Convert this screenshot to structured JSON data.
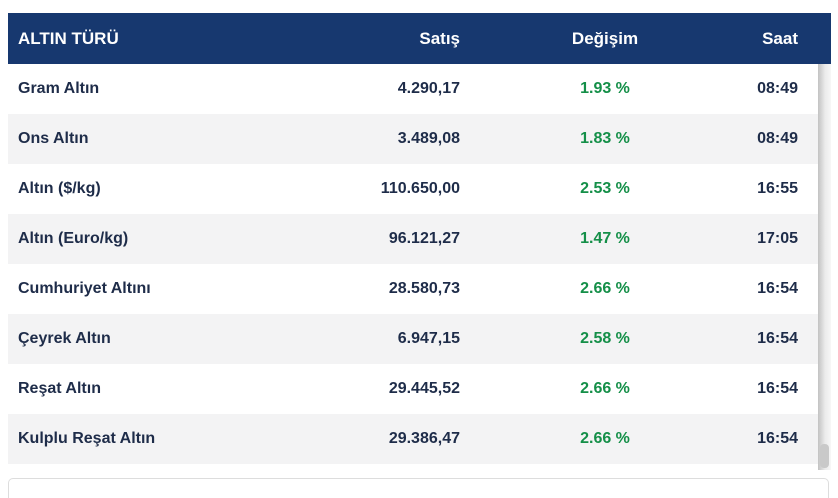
{
  "colors": {
    "header_bg": "#17386f",
    "change_positive": "#148f48",
    "text": "#1e2c49",
    "row_alt_bg": "#f3f3f4"
  },
  "table": {
    "headers": {
      "type": "ALTIN TÜRÜ",
      "price": "Satış",
      "change": "Değişim",
      "time": "Saat"
    },
    "rows": [
      {
        "name": "Gram Altın",
        "price": "4.290,17",
        "change": "1.93 %",
        "time": "08:49"
      },
      {
        "name": "Ons Altın",
        "price": "3.489,08",
        "change": "1.83 %",
        "time": "08:49"
      },
      {
        "name": "Altın ($/kg)",
        "price": "110.650,00",
        "change": "2.53 %",
        "time": "16:55"
      },
      {
        "name": "Altın (Euro/kg)",
        "price": "96.121,27",
        "change": "1.47 %",
        "time": "17:05"
      },
      {
        "name": "Cumhuriyet Altını",
        "price": "28.580,73",
        "change": "2.66 %",
        "time": "16:54"
      },
      {
        "name": "Çeyrek Altın",
        "price": "6.947,15",
        "change": "2.58 %",
        "time": "16:54"
      },
      {
        "name": "Reşat Altın",
        "price": "29.445,52",
        "change": "2.66 %",
        "time": "16:54"
      },
      {
        "name": "Kulplu Reşat Altın",
        "price": "29.386,47",
        "change": "2.66 %",
        "time": "16:54"
      }
    ]
  }
}
